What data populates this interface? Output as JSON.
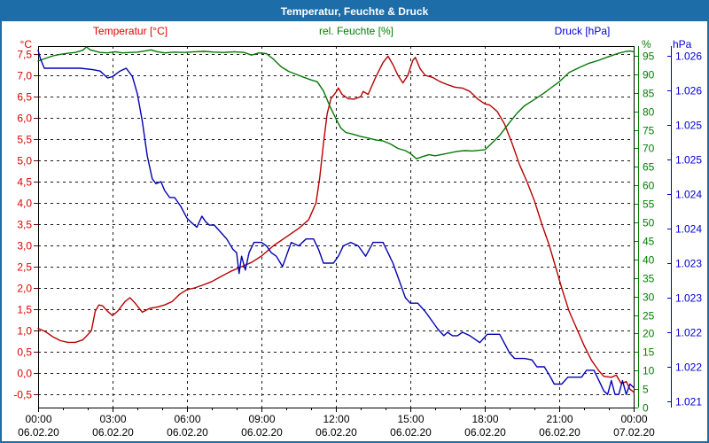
{
  "window": {
    "title": "Temperatur, Feuchte & Druck"
  },
  "chart_data": {
    "type": "line",
    "title": "Temperatur, Feuchte & Druck",
    "legend_position": "top",
    "grid": "dashed",
    "series_labels": [
      {
        "label": "Temperatur [°C]",
        "color": "#e00000"
      },
      {
        "label": "rel. Feuchte [%]",
        "color": "#008000"
      },
      {
        "label": "Druck [hPa]",
        "color": "#0000d6"
      }
    ],
    "axes": {
      "left": {
        "unit": "°C",
        "color": "#e00000",
        "min": -0.5,
        "max": 7.5,
        "step": 0.5,
        "tick_labels": [
          "7,5",
          "7,0",
          "6,5",
          "6,0",
          "5,5",
          "5,0",
          "4,5",
          "4,0",
          "3,5",
          "3,0",
          "2,5",
          "2,0",
          "1,5",
          "1,0",
          "0,5",
          "0,0",
          "-0,5"
        ]
      },
      "right_humidity": {
        "unit": "%",
        "color": "#008000",
        "min": 0,
        "max": 95,
        "step": 5,
        "tick_labels": [
          "95",
          "90",
          "85",
          "80",
          "75",
          "70",
          "65",
          "60",
          "55",
          "50",
          "45",
          "40",
          "35",
          "30",
          "25",
          "20",
          "15",
          "10",
          "5",
          "0"
        ]
      },
      "right_pressure": {
        "unit": "hPa",
        "color": "#0000d6",
        "min": 1021,
        "max": 1026,
        "step": 0.5,
        "tick_labels": [
          "1.026",
          "1.026",
          "1.025",
          "1.025",
          "1.024",
          "1.024",
          "1.023",
          "1.023",
          "1.022",
          "1.022",
          "1.021"
        ]
      },
      "x": {
        "hours_total": 24,
        "major_step_h": 3,
        "minor_step_h": 1,
        "time_labels": [
          "00:00",
          "03:00",
          "06:00",
          "09:00",
          "12:00",
          "15:00",
          "18:00",
          "21:00",
          "00:00"
        ],
        "date_labels": [
          "06.02.20",
          "06.02.20",
          "06.02.20",
          "06.02.20",
          "06.02.20",
          "06.02.20",
          "06.02.20",
          "06.02.20",
          "07.02.20"
        ]
      }
    },
    "series": [
      {
        "name": "Temperatur",
        "unit": "°C",
        "axis": "left",
        "color": "#b80000",
        "points": [
          [
            0,
            1.05
          ],
          [
            0.3,
            0.97
          ],
          [
            0.6,
            0.85
          ],
          [
            0.9,
            0.76
          ],
          [
            1.2,
            0.72
          ],
          [
            1.5,
            0.72
          ],
          [
            1.8,
            0.78
          ],
          [
            2.0,
            0.9
          ],
          [
            2.15,
            1.0
          ],
          [
            2.3,
            1.45
          ],
          [
            2.45,
            1.6
          ],
          [
            2.6,
            1.58
          ],
          [
            2.8,
            1.45
          ],
          [
            3.0,
            1.35
          ],
          [
            3.2,
            1.45
          ],
          [
            3.5,
            1.68
          ],
          [
            3.7,
            1.77
          ],
          [
            3.9,
            1.65
          ],
          [
            4.2,
            1.43
          ],
          [
            4.5,
            1.52
          ],
          [
            4.8,
            1.55
          ],
          [
            5.1,
            1.6
          ],
          [
            5.4,
            1.68
          ],
          [
            5.7,
            1.85
          ],
          [
            6.0,
            1.96
          ],
          [
            6.3,
            2.0
          ],
          [
            6.6,
            2.06
          ],
          [
            7.0,
            2.15
          ],
          [
            7.4,
            2.28
          ],
          [
            7.8,
            2.4
          ],
          [
            8.2,
            2.5
          ],
          [
            8.6,
            2.6
          ],
          [
            9.0,
            2.75
          ],
          [
            9.5,
            3.0
          ],
          [
            10.0,
            3.2
          ],
          [
            10.5,
            3.4
          ],
          [
            10.9,
            3.6
          ],
          [
            11.2,
            4.0
          ],
          [
            11.35,
            4.6
          ],
          [
            11.5,
            5.4
          ],
          [
            11.65,
            6.1
          ],
          [
            11.8,
            6.45
          ],
          [
            12.0,
            6.6
          ],
          [
            12.1,
            6.7
          ],
          [
            12.25,
            6.55
          ],
          [
            12.5,
            6.45
          ],
          [
            12.75,
            6.44
          ],
          [
            13.0,
            6.5
          ],
          [
            13.1,
            6.62
          ],
          [
            13.3,
            6.55
          ],
          [
            13.6,
            6.95
          ],
          [
            13.9,
            7.3
          ],
          [
            14.1,
            7.45
          ],
          [
            14.3,
            7.25
          ],
          [
            14.5,
            7.0
          ],
          [
            14.7,
            6.82
          ],
          [
            14.9,
            7.0
          ],
          [
            15.1,
            7.35
          ],
          [
            15.2,
            7.42
          ],
          [
            15.4,
            7.15
          ],
          [
            15.6,
            7.0
          ],
          [
            15.9,
            6.95
          ],
          [
            16.2,
            6.85
          ],
          [
            16.5,
            6.78
          ],
          [
            16.8,
            6.72
          ],
          [
            17.1,
            6.7
          ],
          [
            17.4,
            6.62
          ],
          [
            17.7,
            6.45
          ],
          [
            18.0,
            6.33
          ],
          [
            18.2,
            6.3
          ],
          [
            18.5,
            6.15
          ],
          [
            18.8,
            5.85
          ],
          [
            19.1,
            5.4
          ],
          [
            19.4,
            4.9
          ],
          [
            19.7,
            4.5
          ],
          [
            20.0,
            4.05
          ],
          [
            20.3,
            3.5
          ],
          [
            20.6,
            3.0
          ],
          [
            20.9,
            2.4
          ],
          [
            21.1,
            2.0
          ],
          [
            21.4,
            1.45
          ],
          [
            21.7,
            1.05
          ],
          [
            22.0,
            0.65
          ],
          [
            22.3,
            0.3
          ],
          [
            22.6,
            0.05
          ],
          [
            22.8,
            -0.08
          ],
          [
            23.1,
            -0.1
          ],
          [
            23.3,
            -0.05
          ],
          [
            23.5,
            -0.25
          ],
          [
            23.7,
            -0.2
          ],
          [
            23.85,
            -0.38
          ],
          [
            24.0,
            -0.45
          ]
        ]
      },
      {
        "name": "rel. Feuchte",
        "unit": "%",
        "axis": "right_humidity",
        "color": "#067806",
        "points": [
          [
            0,
            93.6
          ],
          [
            0.3,
            94.3
          ],
          [
            0.6,
            95.0
          ],
          [
            0.9,
            95.4
          ],
          [
            1.2,
            95.7
          ],
          [
            1.5,
            95.9
          ],
          [
            1.8,
            96.5
          ],
          [
            1.95,
            97.4
          ],
          [
            2.1,
            96.6
          ],
          [
            2.5,
            95.9
          ],
          [
            2.8,
            95.8
          ],
          [
            3.1,
            96.1
          ],
          [
            3.4,
            95.8
          ],
          [
            3.7,
            95.9
          ],
          [
            4.0,
            96.0
          ],
          [
            4.3,
            96.3
          ],
          [
            4.55,
            96.6
          ],
          [
            4.8,
            96.1
          ],
          [
            5.1,
            95.8
          ],
          [
            5.5,
            96.0
          ],
          [
            5.9,
            95.9
          ],
          [
            6.3,
            96.1
          ],
          [
            6.7,
            96.2
          ],
          [
            7.1,
            96.0
          ],
          [
            7.5,
            95.9
          ],
          [
            7.9,
            96.1
          ],
          [
            8.3,
            95.9
          ],
          [
            8.6,
            95.2
          ],
          [
            8.9,
            95.8
          ],
          [
            9.2,
            95.6
          ],
          [
            9.5,
            94.0
          ],
          [
            9.8,
            92.0
          ],
          [
            10.1,
            90.8
          ],
          [
            10.4,
            90.0
          ],
          [
            10.7,
            89.2
          ],
          [
            11.0,
            88.5
          ],
          [
            11.25,
            88.0
          ],
          [
            11.5,
            85.5
          ],
          [
            11.75,
            81.5
          ],
          [
            12.0,
            78.0
          ],
          [
            12.2,
            75.5
          ],
          [
            12.4,
            74.3
          ],
          [
            12.7,
            73.8
          ],
          [
            13.0,
            73.2
          ],
          [
            13.3,
            72.8
          ],
          [
            13.6,
            72.3
          ],
          [
            13.9,
            72.0
          ],
          [
            14.2,
            71.2
          ],
          [
            14.5,
            70.0
          ],
          [
            14.8,
            69.4
          ],
          [
            15.0,
            68.6
          ],
          [
            15.25,
            67.2
          ],
          [
            15.5,
            67.8
          ],
          [
            15.75,
            68.3
          ],
          [
            16.0,
            68.0
          ],
          [
            16.3,
            68.4
          ],
          [
            16.6,
            68.8
          ],
          [
            16.9,
            69.2
          ],
          [
            17.2,
            69.4
          ],
          [
            17.5,
            69.3
          ],
          [
            17.8,
            69.5
          ],
          [
            18.0,
            69.6
          ],
          [
            18.3,
            71.5
          ],
          [
            18.6,
            73.5
          ],
          [
            19.0,
            77.0
          ],
          [
            19.3,
            79.5
          ],
          [
            19.6,
            81.5
          ],
          [
            20.0,
            83.2
          ],
          [
            20.4,
            85.0
          ],
          [
            20.7,
            86.5
          ],
          [
            21.0,
            88.0
          ],
          [
            21.4,
            90.5
          ],
          [
            21.8,
            91.8
          ],
          [
            22.2,
            93.0
          ],
          [
            22.6,
            93.8
          ],
          [
            23.0,
            94.8
          ],
          [
            23.4,
            95.7
          ],
          [
            23.7,
            96.2
          ],
          [
            23.85,
            96.3
          ],
          [
            24.0,
            96.1
          ]
        ]
      },
      {
        "name": "Druck",
        "unit": "hPa",
        "axis": "right_pressure",
        "color": "#0202b4",
        "points": [
          [
            0,
            1026.08
          ],
          [
            0.1,
            1025.95
          ],
          [
            0.25,
            1025.82
          ],
          [
            0.7,
            1025.82
          ],
          [
            1.2,
            1025.82
          ],
          [
            1.7,
            1025.82
          ],
          [
            2.2,
            1025.8
          ],
          [
            2.5,
            1025.78
          ],
          [
            2.8,
            1025.68
          ],
          [
            3.0,
            1025.7
          ],
          [
            3.3,
            1025.78
          ],
          [
            3.55,
            1025.82
          ],
          [
            3.8,
            1025.7
          ],
          [
            4.0,
            1025.45
          ],
          [
            4.2,
            1025.05
          ],
          [
            4.4,
            1024.55
          ],
          [
            4.6,
            1024.22
          ],
          [
            4.75,
            1024.15
          ],
          [
            4.95,
            1024.18
          ],
          [
            5.1,
            1024.05
          ],
          [
            5.3,
            1023.95
          ],
          [
            5.5,
            1023.95
          ],
          [
            5.75,
            1023.82
          ],
          [
            6.0,
            1023.65
          ],
          [
            6.2,
            1023.58
          ],
          [
            6.4,
            1023.52
          ],
          [
            6.6,
            1023.68
          ],
          [
            6.75,
            1023.6
          ],
          [
            6.9,
            1023.55
          ],
          [
            7.1,
            1023.55
          ],
          [
            7.35,
            1023.45
          ],
          [
            7.6,
            1023.35
          ],
          [
            7.85,
            1023.2
          ],
          [
            8.0,
            1023.15
          ],
          [
            8.1,
            1022.85
          ],
          [
            8.2,
            1023.1
          ],
          [
            8.35,
            1022.9
          ],
          [
            8.5,
            1023.15
          ],
          [
            8.7,
            1023.3
          ],
          [
            9.0,
            1023.3
          ],
          [
            9.2,
            1023.25
          ],
          [
            9.4,
            1023.15
          ],
          [
            9.6,
            1023.1
          ],
          [
            9.85,
            1022.95
          ],
          [
            10.0,
            1023.1
          ],
          [
            10.2,
            1023.3
          ],
          [
            10.5,
            1023.25
          ],
          [
            10.8,
            1023.35
          ],
          [
            11.1,
            1023.35
          ],
          [
            11.3,
            1023.2
          ],
          [
            11.5,
            1023.0
          ],
          [
            11.9,
            1023.0
          ],
          [
            12.1,
            1023.1
          ],
          [
            12.3,
            1023.25
          ],
          [
            12.6,
            1023.3
          ],
          [
            12.9,
            1023.25
          ],
          [
            13.2,
            1023.1
          ],
          [
            13.5,
            1023.3
          ],
          [
            13.9,
            1023.3
          ],
          [
            14.1,
            1023.15
          ],
          [
            14.3,
            1023.0
          ],
          [
            14.6,
            1022.7
          ],
          [
            14.8,
            1022.5
          ],
          [
            15.0,
            1022.42
          ],
          [
            15.3,
            1022.42
          ],
          [
            15.6,
            1022.3
          ],
          [
            15.8,
            1022.2
          ],
          [
            16.1,
            1022.05
          ],
          [
            16.35,
            1021.95
          ],
          [
            16.5,
            1022.0
          ],
          [
            16.7,
            1021.95
          ],
          [
            16.9,
            1021.95
          ],
          [
            17.1,
            1022.0
          ],
          [
            17.4,
            1021.95
          ],
          [
            17.8,
            1021.85
          ],
          [
            18.1,
            1021.97
          ],
          [
            18.6,
            1021.97
          ],
          [
            19.0,
            1021.7
          ],
          [
            19.2,
            1021.62
          ],
          [
            19.6,
            1021.62
          ],
          [
            19.9,
            1021.6
          ],
          [
            20.1,
            1021.5
          ],
          [
            20.4,
            1021.5
          ],
          [
            20.65,
            1021.35
          ],
          [
            20.8,
            1021.25
          ],
          [
            21.1,
            1021.25
          ],
          [
            21.35,
            1021.35
          ],
          [
            21.6,
            1021.35
          ],
          [
            21.9,
            1021.35
          ],
          [
            22.1,
            1021.45
          ],
          [
            22.4,
            1021.45
          ],
          [
            22.6,
            1021.3
          ],
          [
            22.8,
            1021.15
          ],
          [
            22.95,
            1021.1
          ],
          [
            23.1,
            1021.3
          ],
          [
            23.25,
            1021.1
          ],
          [
            23.4,
            1021.1
          ],
          [
            23.55,
            1021.3
          ],
          [
            23.7,
            1021.1
          ],
          [
            23.85,
            1021.25
          ],
          [
            24.0,
            1021.2
          ]
        ]
      }
    ]
  }
}
